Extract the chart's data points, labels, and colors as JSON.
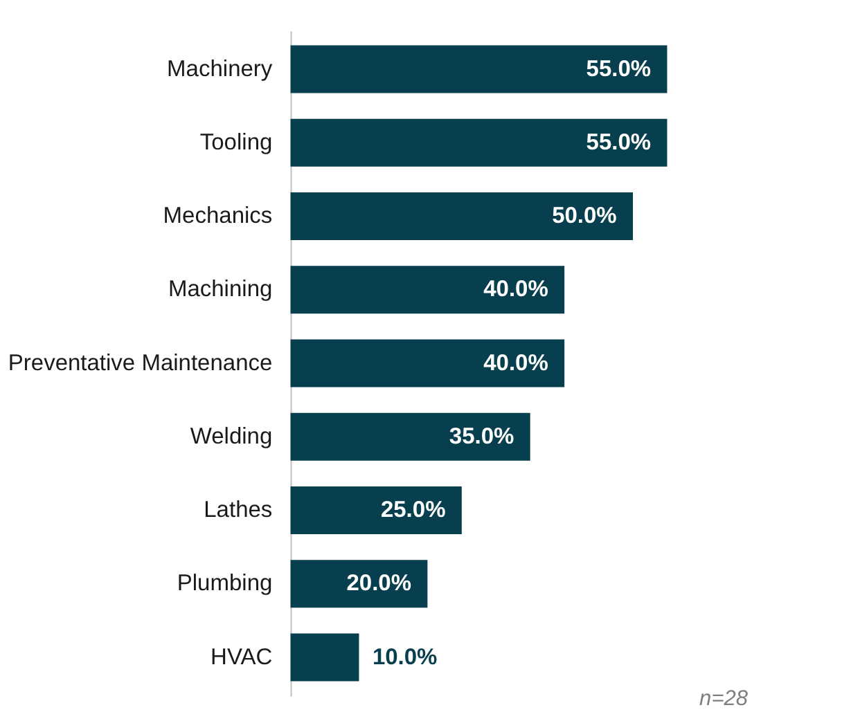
{
  "chart_data": {
    "type": "bar",
    "orientation": "horizontal",
    "categories": [
      "Machinery",
      "Tooling",
      "Mechanics",
      "Machining",
      "Preventative Maintenance",
      "Welding",
      "Lathes",
      "Plumbing",
      "HVAC"
    ],
    "values": [
      55.0,
      55.0,
      50.0,
      40.0,
      40.0,
      35.0,
      25.0,
      20.0,
      10.0
    ],
    "value_labels": [
      "55.0%",
      "55.0%",
      "50.0%",
      "40.0%",
      "40.0%",
      "35.0%",
      "25.0%",
      "20.0%",
      "10.0%"
    ],
    "color": "#083f4e",
    "tick_labels": "y",
    "annotations": [
      "n=28"
    ]
  }
}
